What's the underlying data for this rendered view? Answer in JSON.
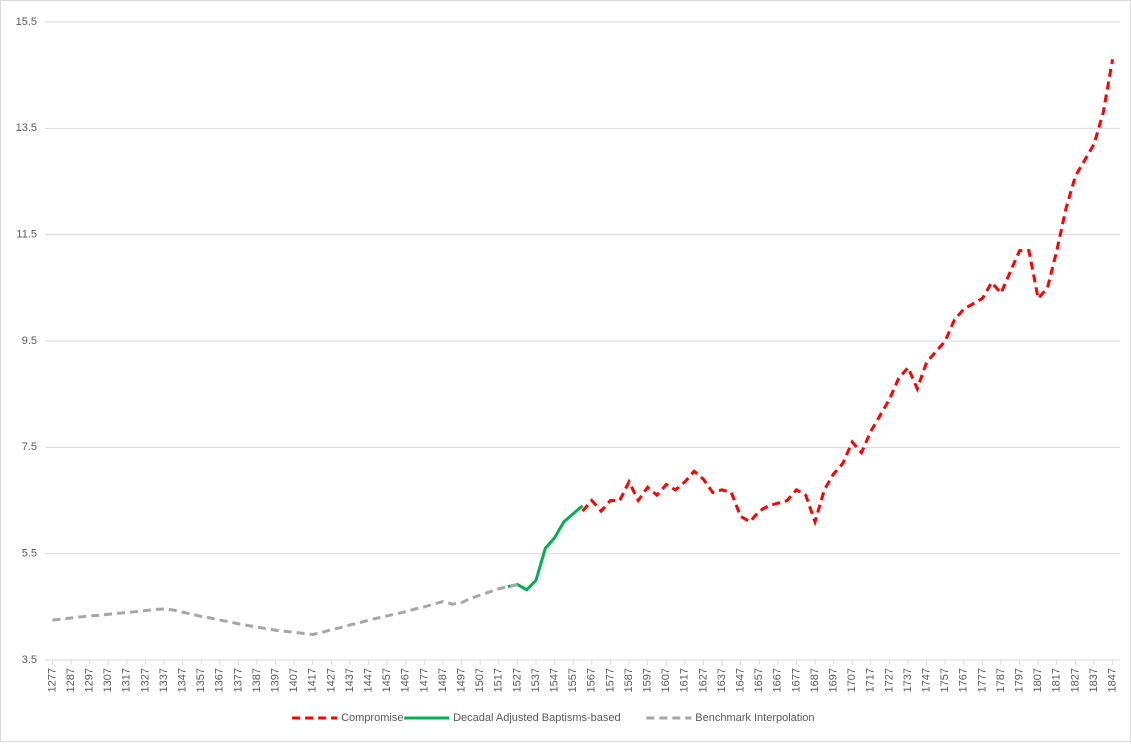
{
  "chart_data": {
    "type": "line",
    "x": [
      1277,
      1282,
      1287,
      1292,
      1297,
      1302,
      1307,
      1312,
      1317,
      1322,
      1327,
      1332,
      1337,
      1342,
      1347,
      1352,
      1357,
      1362,
      1367,
      1372,
      1377,
      1382,
      1387,
      1392,
      1397,
      1402,
      1407,
      1412,
      1417,
      1422,
      1427,
      1432,
      1437,
      1442,
      1447,
      1452,
      1457,
      1462,
      1467,
      1472,
      1477,
      1482,
      1487,
      1492,
      1497,
      1502,
      1507,
      1512,
      1517,
      1522,
      1527,
      1532,
      1537,
      1542,
      1547,
      1552,
      1557,
      1562,
      1567,
      1572,
      1577,
      1582,
      1587,
      1592,
      1597,
      1602,
      1607,
      1612,
      1617,
      1622,
      1627,
      1632,
      1637,
      1642,
      1647,
      1652,
      1657,
      1662,
      1667,
      1672,
      1677,
      1682,
      1687,
      1692,
      1697,
      1702,
      1707,
      1712,
      1717,
      1722,
      1727,
      1732,
      1737,
      1742,
      1747,
      1752,
      1757,
      1762,
      1767,
      1772,
      1777,
      1782,
      1787,
      1792,
      1797,
      1802,
      1807,
      1812,
      1817,
      1822,
      1827,
      1832,
      1837,
      1842,
      1847
    ],
    "series": [
      {
        "name": "Compromise",
        "color": "#ff0000",
        "dashed": true,
        "values": [
          null,
          null,
          null,
          null,
          null,
          null,
          null,
          null,
          null,
          null,
          null,
          null,
          null,
          null,
          null,
          null,
          null,
          null,
          null,
          null,
          null,
          null,
          null,
          null,
          null,
          null,
          null,
          null,
          null,
          null,
          null,
          null,
          null,
          null,
          null,
          null,
          null,
          null,
          null,
          null,
          null,
          null,
          null,
          null,
          null,
          null,
          null,
          null,
          null,
          null,
          null,
          null,
          null,
          null,
          null,
          null,
          null,
          6.3,
          6.5,
          6.3,
          6.5,
          6.5,
          6.85,
          6.5,
          6.75,
          6.6,
          6.8,
          6.7,
          6.85,
          7.05,
          6.9,
          6.65,
          6.7,
          6.65,
          6.2,
          6.1,
          6.3,
          6.4,
          6.45,
          6.5,
          6.7,
          6.6,
          6.1,
          6.7,
          7.0,
          7.2,
          7.6,
          7.4,
          7.8,
          8.1,
          8.4,
          8.8,
          9.0,
          8.6,
          9.1,
          9.3,
          9.5,
          9.9,
          10.1,
          10.2,
          10.3,
          10.6,
          10.4,
          10.8,
          11.2,
          11.2,
          10.3,
          10.5,
          11.2,
          12.0,
          12.6,
          12.9,
          13.2,
          13.8,
          14.8
        ]
      },
      {
        "name": "Decadal Adjusted Baptisms-based",
        "color": "#00b050",
        "dashed": false,
        "values": [
          null,
          null,
          null,
          null,
          null,
          null,
          null,
          null,
          null,
          null,
          null,
          null,
          null,
          null,
          null,
          null,
          null,
          null,
          null,
          null,
          null,
          null,
          null,
          null,
          null,
          null,
          null,
          null,
          null,
          null,
          null,
          null,
          null,
          null,
          null,
          null,
          null,
          null,
          null,
          null,
          null,
          null,
          null,
          null,
          null,
          null,
          null,
          null,
          null,
          4.88,
          4.92,
          4.82,
          5.0,
          5.6,
          5.8,
          6.1,
          6.25,
          6.4,
          null,
          null,
          null,
          null,
          null,
          null,
          null,
          null,
          null,
          null,
          null,
          null,
          null,
          null,
          null,
          null,
          null,
          null,
          null,
          null,
          null,
          null,
          null,
          null,
          null,
          null,
          null,
          null,
          null,
          null,
          null,
          null,
          null,
          null,
          null,
          null,
          null,
          null,
          null,
          null,
          null,
          null,
          null,
          null,
          null,
          null,
          null,
          null,
          null,
          null,
          null,
          null,
          null,
          null,
          null,
          null,
          null
        ]
      },
      {
        "name": "Benchmark Interpolation",
        "color": "#a6a6a6",
        "dashed": true,
        "values": [
          4.25,
          4.27,
          4.29,
          4.31,
          4.33,
          4.34,
          4.36,
          4.38,
          4.39,
          4.41,
          4.43,
          4.45,
          4.46,
          4.44,
          4.4,
          4.36,
          4.32,
          4.29,
          4.25,
          4.22,
          4.18,
          4.15,
          4.12,
          4.09,
          4.06,
          4.04,
          4.02,
          4.0,
          3.98,
          4.02,
          4.07,
          4.11,
          4.16,
          4.2,
          4.25,
          4.29,
          4.33,
          4.37,
          4.41,
          4.46,
          4.5,
          4.55,
          4.6,
          4.55,
          4.58,
          4.66,
          4.72,
          4.78,
          4.84,
          4.88,
          4.92,
          null,
          null,
          null,
          null,
          null,
          null,
          null,
          null,
          null,
          null,
          null,
          null,
          null,
          null,
          null,
          null,
          null,
          null,
          null,
          null,
          null,
          null,
          null,
          null,
          null,
          null,
          null,
          null,
          null,
          null,
          null,
          null,
          null,
          null,
          null,
          null,
          null,
          null,
          null,
          null,
          null,
          null,
          null,
          null,
          null,
          null,
          null,
          null,
          null,
          null,
          null,
          null,
          null,
          null,
          null,
          null,
          null,
          null,
          null,
          null,
          null,
          null,
          null,
          null
        ]
      }
    ],
    "xlim": [
      1273,
      1851
    ],
    "xticks": [
      1277,
      1287,
      1297,
      1307,
      1317,
      1327,
      1337,
      1347,
      1357,
      1367,
      1377,
      1387,
      1397,
      1407,
      1417,
      1427,
      1437,
      1447,
      1457,
      1467,
      1477,
      1487,
      1497,
      1507,
      1517,
      1527,
      1537,
      1547,
      1557,
      1567,
      1577,
      1587,
      1597,
      1607,
      1617,
      1627,
      1637,
      1647,
      1657,
      1667,
      1677,
      1687,
      1697,
      1707,
      1717,
      1727,
      1737,
      1747,
      1757,
      1767,
      1777,
      1787,
      1797,
      1807,
      1817,
      1827,
      1837,
      1847
    ],
    "ylim": [
      3.5,
      15.5
    ],
    "yticks": [
      3.5,
      5.5,
      7.5,
      9.5,
      11.5,
      13.5,
      15.5
    ],
    "grid": true,
    "legend": "bottom"
  }
}
